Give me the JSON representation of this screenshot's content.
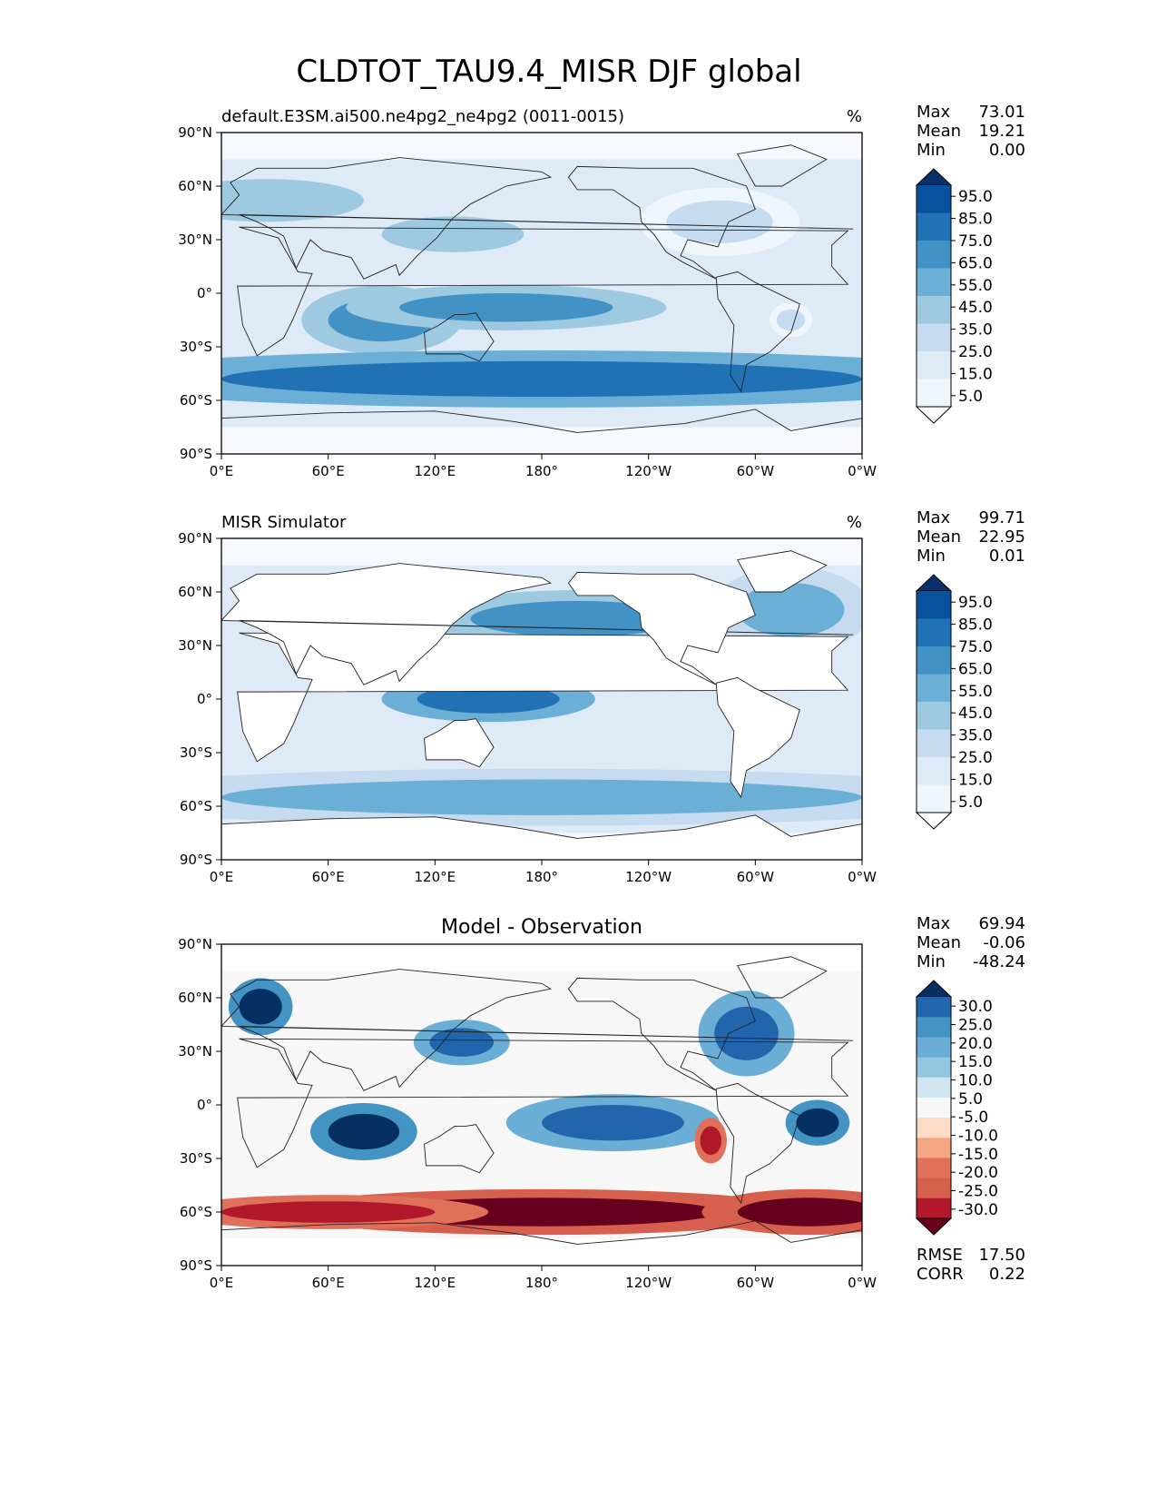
{
  "figure": {
    "title": "CLDTOT_TAU9.4_MISR DJF global"
  },
  "axes": {
    "lat_ticks": [
      "90°N",
      "60°N",
      "30°N",
      "0°",
      "30°S",
      "60°S",
      "90°S"
    ],
    "lon_ticks": [
      "0°E",
      "60°E",
      "120°E",
      "180°",
      "120°W",
      "60°W",
      "0°W"
    ]
  },
  "panels": [
    {
      "id": "test",
      "title_left": "default.E3SM.ai500.ne4pg2_ne4pg2 (0011-0015)",
      "title_center": "",
      "units": "%",
      "stats": [
        {
          "label": "Max",
          "value": "73.01"
        },
        {
          "label": "Mean",
          "value": "19.21"
        },
        {
          "label": "Min",
          "value": "0.00"
        }
      ],
      "colorbar_labels": [
        "95.0",
        "85.0",
        "75.0",
        "65.0",
        "55.0",
        "45.0",
        "35.0",
        "25.0",
        "15.0",
        "5.0"
      ],
      "colorbar_colors": [
        "#08306b",
        "#08519c",
        "#2171b5",
        "#4292c6",
        "#6baed6",
        "#9ecae1",
        "#c6dbef",
        "#deebf7",
        "#eef5fc",
        "#ffffff"
      ],
      "extra_stats": []
    },
    {
      "id": "reference",
      "title_left": "MISR Simulator",
      "title_center": "",
      "units": "%",
      "stats": [
        {
          "label": "Max",
          "value": "99.71"
        },
        {
          "label": "Mean",
          "value": "22.95"
        },
        {
          "label": "Min",
          "value": "0.01"
        }
      ],
      "colorbar_labels": [
        "95.0",
        "85.0",
        "75.0",
        "65.0",
        "55.0",
        "45.0",
        "35.0",
        "25.0",
        "15.0",
        "5.0"
      ],
      "colorbar_colors": [
        "#08306b",
        "#08519c",
        "#2171b5",
        "#4292c6",
        "#6baed6",
        "#9ecae1",
        "#c6dbef",
        "#deebf7",
        "#eef5fc",
        "#ffffff"
      ],
      "extra_stats": []
    },
    {
      "id": "difference",
      "title_left": "",
      "title_center": "Model - Observation",
      "units": "",
      "stats": [
        {
          "label": "Max",
          "value": "69.94"
        },
        {
          "label": "Mean",
          "value": "-0.06"
        },
        {
          "label": "Min",
          "value": "-48.24"
        }
      ],
      "colorbar_labels": [
        "30.0",
        "25.0",
        "20.0",
        "15.0",
        "10.0",
        "5.0",
        "-5.0",
        "-10.0",
        "-15.0",
        "-20.0",
        "-25.0",
        "-30.0"
      ],
      "colorbar_colors": [
        "#053061",
        "#2166ac",
        "#4393c3",
        "#6aaed6",
        "#92c5de",
        "#d1e5f0",
        "#f7f7f7",
        "#fddbc7",
        "#f4a582",
        "#e0705a",
        "#d6604d",
        "#b2182b",
        "#67001f"
      ],
      "extra_stats": [
        {
          "label": "RMSE",
          "value": "17.50"
        },
        {
          "label": "CORR",
          "value": "0.22"
        }
      ]
    }
  ],
  "map_fields": {
    "test_blobs": [
      {
        "lon": 25,
        "lat": 52,
        "rx": 55,
        "ry": 12,
        "level": 5
      },
      {
        "lon": 130,
        "lat": 33,
        "rx": 40,
        "ry": 10,
        "level": 5
      },
      {
        "lon": 280,
        "lat": 40,
        "rx": 30,
        "ry": 12,
        "level": 6
      },
      {
        "lon": 320,
        "lat": -15,
        "rx": 8,
        "ry": 6,
        "level": 6
      },
      {
        "lon": 90,
        "lat": -15,
        "rx": 30,
        "ry": 12,
        "level": 3
      },
      {
        "lon": 160,
        "lat": -8,
        "rx": 60,
        "ry": 8,
        "level": 3
      },
      {
        "lon": 180,
        "lat": -48,
        "rx": 180,
        "ry": 10,
        "level": 2
      }
    ],
    "reference_blobs": [
      {
        "lon": 180,
        "lat": -55,
        "rx": 180,
        "ry": 10,
        "level": 4
      },
      {
        "lon": 200,
        "lat": 45,
        "rx": 60,
        "ry": 10,
        "level": 3
      },
      {
        "lon": 320,
        "lat": 50,
        "rx": 30,
        "ry": 15,
        "level": 4
      },
      {
        "lon": 150,
        "lat": 0,
        "rx": 40,
        "ry": 8,
        "level": 2
      }
    ],
    "difference_blobs": [
      {
        "lon": 22,
        "lat": 55,
        "rx": 12,
        "ry": 10,
        "level": 0
      },
      {
        "lon": 80,
        "lat": -15,
        "rx": 20,
        "ry": 10,
        "level": 0
      },
      {
        "lon": 135,
        "lat": 35,
        "rx": 18,
        "ry": 8,
        "level": 1
      },
      {
        "lon": 295,
        "lat": 40,
        "rx": 18,
        "ry": 15,
        "level": 1
      },
      {
        "lon": 220,
        "lat": -10,
        "rx": 40,
        "ry": 10,
        "level": 1
      },
      {
        "lon": 335,
        "lat": -10,
        "rx": 12,
        "ry": 8,
        "level": 0
      },
      {
        "lon": 180,
        "lat": -60,
        "rx": 100,
        "ry": 8,
        "level": 12
      },
      {
        "lon": 330,
        "lat": -60,
        "rx": 40,
        "ry": 8,
        "level": 12
      },
      {
        "lon": 60,
        "lat": -60,
        "rx": 60,
        "ry": 6,
        "level": 11
      },
      {
        "lon": 275,
        "lat": -20,
        "rx": 6,
        "ry": 8,
        "level": 11
      }
    ]
  }
}
